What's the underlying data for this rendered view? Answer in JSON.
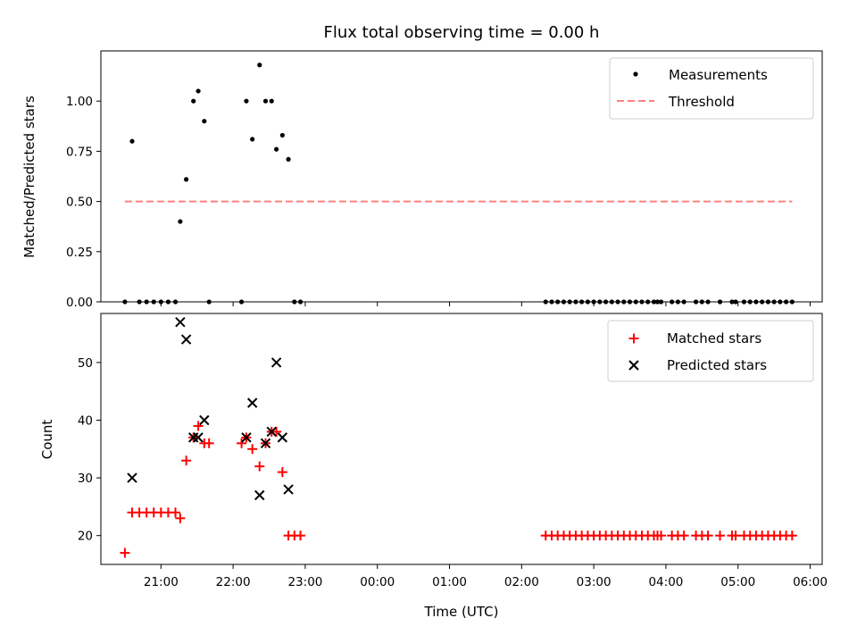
{
  "chart_data": [
    {
      "type": "scatter",
      "title": "Flux total observing time = 0.00 h",
      "xlabel": "",
      "ylabel": "Matched/Predicted stars",
      "xlim": [
        "20:10",
        "06:10"
      ],
      "ylim": [
        0,
        1.25
      ],
      "yticks": [
        "0.00",
        "0.25",
        "0.50",
        "0.75",
        "1.00"
      ],
      "legend_position": "top-right",
      "series": [
        {
          "name": "Measurements",
          "color": "#000000",
          "marker": "dot",
          "points": [
            {
              "x": "20:30",
              "y": 0.0
            },
            {
              "x": "20:36",
              "y": 0.8
            },
            {
              "x": "20:42",
              "y": 0.0
            },
            {
              "x": "20:48",
              "y": 0.0
            },
            {
              "x": "20:54",
              "y": 0.0
            },
            {
              "x": "21:00",
              "y": 0.0
            },
            {
              "x": "21:06",
              "y": 0.0
            },
            {
              "x": "21:12",
              "y": 0.0
            },
            {
              "x": "21:16",
              "y": 0.4
            },
            {
              "x": "21:21",
              "y": 0.61
            },
            {
              "x": "21:27",
              "y": 1.0
            },
            {
              "x": "21:31",
              "y": 1.05
            },
            {
              "x": "21:36",
              "y": 0.9
            },
            {
              "x": "21:40",
              "y": 0.0
            },
            {
              "x": "22:07",
              "y": 0.0
            },
            {
              "x": "22:11",
              "y": 1.0
            },
            {
              "x": "22:16",
              "y": 0.81
            },
            {
              "x": "22:22",
              "y": 1.18
            },
            {
              "x": "22:27",
              "y": 1.0
            },
            {
              "x": "22:32",
              "y": 1.0
            },
            {
              "x": "22:36",
              "y": 0.76
            },
            {
              "x": "22:41",
              "y": 0.83
            },
            {
              "x": "22:46",
              "y": 0.71
            },
            {
              "x": "22:51",
              "y": 0.0
            },
            {
              "x": "22:56",
              "y": 0.0
            },
            {
              "x": "02:20",
              "y": 0.0
            },
            {
              "x": "02:25",
              "y": 0.0
            },
            {
              "x": "02:30",
              "y": 0.0
            },
            {
              "x": "02:35",
              "y": 0.0
            },
            {
              "x": "02:40",
              "y": 0.0
            },
            {
              "x": "02:45",
              "y": 0.0
            },
            {
              "x": "02:50",
              "y": 0.0
            },
            {
              "x": "02:55",
              "y": 0.0
            },
            {
              "x": "03:00",
              "y": 0.0
            },
            {
              "x": "03:05",
              "y": 0.0
            },
            {
              "x": "03:10",
              "y": 0.0
            },
            {
              "x": "03:15",
              "y": 0.0
            },
            {
              "x": "03:20",
              "y": 0.0
            },
            {
              "x": "03:25",
              "y": 0.0
            },
            {
              "x": "03:30",
              "y": 0.0
            },
            {
              "x": "03:35",
              "y": 0.0
            },
            {
              "x": "03:40",
              "y": 0.0
            },
            {
              "x": "03:45",
              "y": 0.0
            },
            {
              "x": "03:50",
              "y": 0.0
            },
            {
              "x": "03:53",
              "y": 0.0
            },
            {
              "x": "03:56",
              "y": 0.0
            },
            {
              "x": "04:05",
              "y": 0.0
            },
            {
              "x": "04:10",
              "y": 0.0
            },
            {
              "x": "04:15",
              "y": 0.0
            },
            {
              "x": "04:25",
              "y": 0.0
            },
            {
              "x": "04:30",
              "y": 0.0
            },
            {
              "x": "04:35",
              "y": 0.0
            },
            {
              "x": "04:45",
              "y": 0.0
            },
            {
              "x": "04:55",
              "y": 0.0
            },
            {
              "x": "04:58",
              "y": 0.0
            },
            {
              "x": "05:05",
              "y": 0.0
            },
            {
              "x": "05:10",
              "y": 0.0
            },
            {
              "x": "05:15",
              "y": 0.0
            },
            {
              "x": "05:20",
              "y": 0.0
            },
            {
              "x": "05:25",
              "y": 0.0
            },
            {
              "x": "05:30",
              "y": 0.0
            },
            {
              "x": "05:35",
              "y": 0.0
            },
            {
              "x": "05:40",
              "y": 0.0
            },
            {
              "x": "05:45",
              "y": 0.0
            }
          ]
        },
        {
          "name": "Threshold",
          "color": "#ff8080",
          "style": "dashed",
          "points": [
            {
              "x": "20:30",
              "y": 0.5
            },
            {
              "x": "05:45",
              "y": 0.5
            }
          ]
        }
      ]
    },
    {
      "type": "scatter",
      "title": "",
      "xlabel": "Time (UTC)",
      "ylabel": "Count",
      "xlim": [
        "20:10",
        "06:10"
      ],
      "ylim": [
        15,
        58.5
      ],
      "yticks": [
        "20",
        "30",
        "40",
        "50"
      ],
      "xticks": [
        "21:00",
        "22:00",
        "23:00",
        "00:00",
        "01:00",
        "02:00",
        "03:00",
        "04:00",
        "05:00",
        "06:00"
      ],
      "legend_position": "top-right",
      "series": [
        {
          "name": "Matched stars",
          "color": "#ff0000",
          "marker": "plus",
          "points": [
            {
              "x": "20:30",
              "y": 17
            },
            {
              "x": "20:36",
              "y": 24
            },
            {
              "x": "20:42",
              "y": 24
            },
            {
              "x": "20:48",
              "y": 24
            },
            {
              "x": "20:54",
              "y": 24
            },
            {
              "x": "21:00",
              "y": 24
            },
            {
              "x": "21:06",
              "y": 24
            },
            {
              "x": "21:12",
              "y": 24
            },
            {
              "x": "21:16",
              "y": 23
            },
            {
              "x": "21:21",
              "y": 33
            },
            {
              "x": "21:27",
              "y": 37
            },
            {
              "x": "21:31",
              "y": 39
            },
            {
              "x": "21:36",
              "y": 36
            },
            {
              "x": "21:40",
              "y": 36
            },
            {
              "x": "22:07",
              "y": 36
            },
            {
              "x": "22:11",
              "y": 37
            },
            {
              "x": "22:16",
              "y": 35
            },
            {
              "x": "22:22",
              "y": 32
            },
            {
              "x": "22:27",
              "y": 36
            },
            {
              "x": "22:32",
              "y": 38
            },
            {
              "x": "22:36",
              "y": 38
            },
            {
              "x": "22:41",
              "y": 31
            },
            {
              "x": "22:46",
              "y": 20
            },
            {
              "x": "22:51",
              "y": 20
            },
            {
              "x": "22:56",
              "y": 20
            },
            {
              "x": "02:20",
              "y": 20
            },
            {
              "x": "02:25",
              "y": 20
            },
            {
              "x": "02:30",
              "y": 20
            },
            {
              "x": "02:35",
              "y": 20
            },
            {
              "x": "02:40",
              "y": 20
            },
            {
              "x": "02:45",
              "y": 20
            },
            {
              "x": "02:50",
              "y": 20
            },
            {
              "x": "02:55",
              "y": 20
            },
            {
              "x": "03:00",
              "y": 20
            },
            {
              "x": "03:05",
              "y": 20
            },
            {
              "x": "03:10",
              "y": 20
            },
            {
              "x": "03:15",
              "y": 20
            },
            {
              "x": "03:20",
              "y": 20
            },
            {
              "x": "03:25",
              "y": 20
            },
            {
              "x": "03:30",
              "y": 20
            },
            {
              "x": "03:35",
              "y": 20
            },
            {
              "x": "03:40",
              "y": 20
            },
            {
              "x": "03:45",
              "y": 20
            },
            {
              "x": "03:50",
              "y": 20
            },
            {
              "x": "03:53",
              "y": 20
            },
            {
              "x": "03:56",
              "y": 20
            },
            {
              "x": "04:05",
              "y": 20
            },
            {
              "x": "04:10",
              "y": 20
            },
            {
              "x": "04:15",
              "y": 20
            },
            {
              "x": "04:25",
              "y": 20
            },
            {
              "x": "04:30",
              "y": 20
            },
            {
              "x": "04:35",
              "y": 20
            },
            {
              "x": "04:45",
              "y": 20
            },
            {
              "x": "04:55",
              "y": 20
            },
            {
              "x": "04:58",
              "y": 20
            },
            {
              "x": "05:05",
              "y": 20
            },
            {
              "x": "05:10",
              "y": 20
            },
            {
              "x": "05:15",
              "y": 20
            },
            {
              "x": "05:20",
              "y": 20
            },
            {
              "x": "05:25",
              "y": 20
            },
            {
              "x": "05:30",
              "y": 20
            },
            {
              "x": "05:35",
              "y": 20
            },
            {
              "x": "05:40",
              "y": 20
            },
            {
              "x": "05:45",
              "y": 20
            }
          ]
        },
        {
          "name": "Predicted stars",
          "color": "#000000",
          "marker": "x",
          "points": [
            {
              "x": "20:36",
              "y": 30
            },
            {
              "x": "21:16",
              "y": 57
            },
            {
              "x": "21:21",
              "y": 54
            },
            {
              "x": "21:27",
              "y": 37
            },
            {
              "x": "21:31",
              "y": 37
            },
            {
              "x": "21:36",
              "y": 40
            },
            {
              "x": "22:11",
              "y": 37
            },
            {
              "x": "22:16",
              "y": 43
            },
            {
              "x": "22:22",
              "y": 27
            },
            {
              "x": "22:27",
              "y": 36
            },
            {
              "x": "22:32",
              "y": 38
            },
            {
              "x": "22:36",
              "y": 50
            },
            {
              "x": "22:41",
              "y": 37
            },
            {
              "x": "22:46",
              "y": 28
            }
          ]
        }
      ]
    }
  ]
}
